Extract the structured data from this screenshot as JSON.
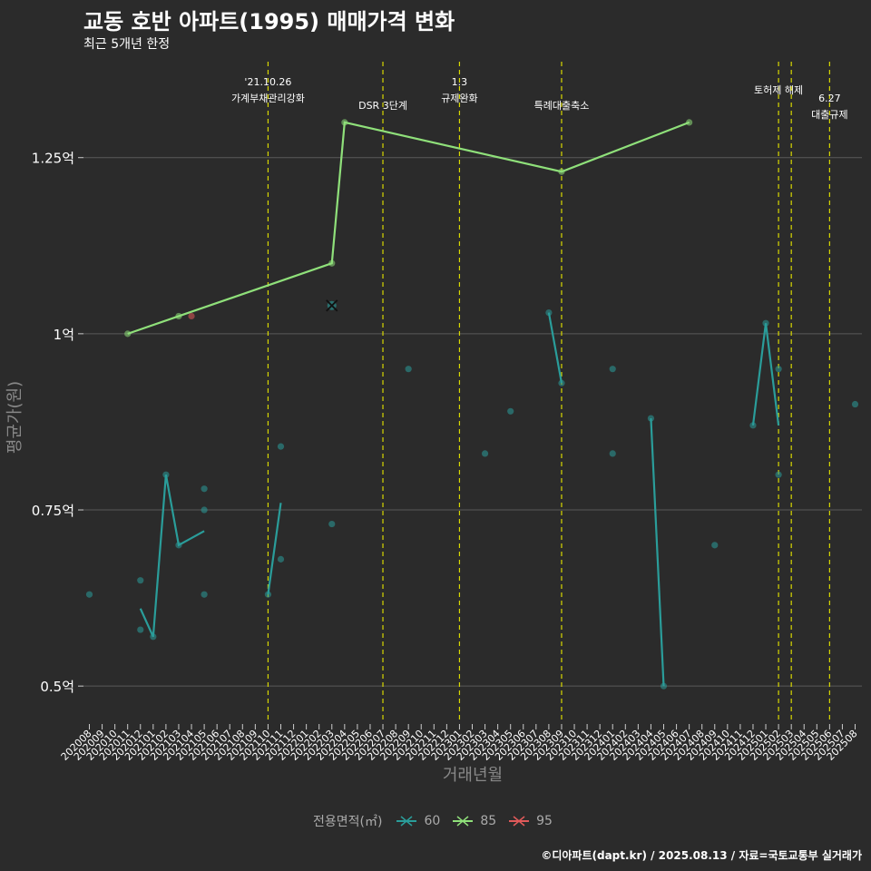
{
  "header": {
    "title": "교동 호반 아파트(1995) 매매가격 변화",
    "subtitle": "최근 5개년 한정"
  },
  "caption": "©디아파트(dapt.kr) / 2025.08.13 / 자료=국토교통부 실거래가",
  "legend": {
    "title": "전용면적(㎡)",
    "items": [
      {
        "label": "60",
        "color": "#2a9d9a"
      },
      {
        "label": "85",
        "color": "#8fe07a"
      },
      {
        "label": "95",
        "color": "#e05a5a"
      }
    ]
  },
  "chart_data": {
    "type": "line",
    "xlabel": "거래년월",
    "ylabel": "평균가(원)",
    "ylim": [
      0.45,
      1.39
    ],
    "y_ticks": [
      {
        "value": 0.5,
        "label": "0.5억"
      },
      {
        "value": 0.75,
        "label": "0.75억"
      },
      {
        "value": 1.0,
        "label": "1억"
      },
      {
        "value": 1.25,
        "label": "1.25억"
      }
    ],
    "x_categories": [
      "202008",
      "202009",
      "202010",
      "202011",
      "202012",
      "202101",
      "202102",
      "202103",
      "202104",
      "202105",
      "202106",
      "202107",
      "202108",
      "202109",
      "202110",
      "202111",
      "202112",
      "202201",
      "202202",
      "202203",
      "202204",
      "202205",
      "202206",
      "202207",
      "202208",
      "202209",
      "202210",
      "202211",
      "202212",
      "202301",
      "202302",
      "202303",
      "202304",
      "202305",
      "202306",
      "202307",
      "202308",
      "202309",
      "202310",
      "202311",
      "202312",
      "202401",
      "202402",
      "202403",
      "202404",
      "202405",
      "202406",
      "202407",
      "202408",
      "202409",
      "202410",
      "202411",
      "202412",
      "202501",
      "202502",
      "202503",
      "202504",
      "202505",
      "202506",
      "202507",
      "202508"
    ],
    "events": [
      {
        "x": "202110",
        "x_offset": 0.0,
        "lines": [
          "'21.10.26",
          "가계부채관리강화"
        ],
        "row": 0
      },
      {
        "x": "202207",
        "x_offset": 0.0,
        "lines": [
          "DSR 3단계"
        ],
        "row": 1
      },
      {
        "x": "202301",
        "x_offset": 0.0,
        "lines": [
          "1.3",
          "규제완화"
        ],
        "row": 0
      },
      {
        "x": "202309",
        "x_offset": 0.0,
        "lines": [
          "특례대출축소"
        ],
        "row": 1
      },
      {
        "x": "202502",
        "x_offset": 0.0,
        "lines": [
          "토허제 해제"
        ],
        "row": 0.35
      },
      {
        "x": "202503",
        "x_offset": 0.0,
        "lines": [],
        "row": 0
      },
      {
        "x": "202506",
        "x_offset": 0.0,
        "lines": [
          "6.27",
          "대출규제"
        ],
        "row": 0.7
      }
    ],
    "series": [
      {
        "name": "60",
        "color": "#2a9d9a",
        "line": [
          {
            "x": "202012",
            "y": 0.61
          },
          {
            "x": "202101",
            "y": 0.57
          },
          {
            "x": "202102",
            "y": 0.8
          },
          {
            "x": "202103",
            "y": 0.7
          },
          {
            "x": "202105",
            "y": 0.72
          }
        ],
        "line2": [
          {
            "x": "202110",
            "y": 0.63
          },
          {
            "x": "202111",
            "y": 0.76
          }
        ],
        "line3": [
          {
            "x": "202308",
            "y": 1.03
          },
          {
            "x": "202309",
            "y": 0.93
          }
        ],
        "line4": [
          {
            "x": "202404",
            "y": 0.88
          },
          {
            "x": "202405",
            "y": 0.5
          }
        ],
        "line5": [
          {
            "x": "202412",
            "y": 0.87
          },
          {
            "x": "202501",
            "y": 1.015
          },
          {
            "x": "202502",
            "y": 0.87
          }
        ],
        "points": [
          {
            "x": "202008",
            "y": 0.63
          },
          {
            "x": "202012",
            "y": 0.65
          },
          {
            "x": "202012",
            "y": 0.58
          },
          {
            "x": "202101",
            "y": 0.57
          },
          {
            "x": "202102",
            "y": 0.8
          },
          {
            "x": "202103",
            "y": 0.7
          },
          {
            "x": "202105",
            "y": 0.78
          },
          {
            "x": "202105",
            "y": 0.75
          },
          {
            "x": "202105",
            "y": 0.63
          },
          {
            "x": "202110",
            "y": 0.63
          },
          {
            "x": "202111",
            "y": 0.84
          },
          {
            "x": "202111",
            "y": 0.68
          },
          {
            "x": "202203",
            "y": 0.73
          },
          {
            "x": "202209",
            "y": 0.95
          },
          {
            "x": "202303",
            "y": 0.83
          },
          {
            "x": "202305",
            "y": 0.89
          },
          {
            "x": "202308",
            "y": 1.03
          },
          {
            "x": "202309",
            "y": 0.93
          },
          {
            "x": "202401",
            "y": 0.95
          },
          {
            "x": "202401",
            "y": 0.83
          },
          {
            "x": "202404",
            "y": 0.88
          },
          {
            "x": "202405",
            "y": 0.5
          },
          {
            "x": "202409",
            "y": 0.7
          },
          {
            "x": "202412",
            "y": 0.87
          },
          {
            "x": "202501",
            "y": 1.015
          },
          {
            "x": "202502",
            "y": 0.95
          },
          {
            "x": "202502",
            "y": 0.8
          },
          {
            "x": "202508",
            "y": 0.9
          }
        ]
      },
      {
        "name": "85",
        "color": "#8fe07a",
        "line": [
          {
            "x": "202011",
            "y": 1.0
          },
          {
            "x": "202103",
            "y": 1.025
          },
          {
            "x": "202203",
            "y": 1.1
          },
          {
            "x": "202204",
            "y": 1.3
          },
          {
            "x": "202309",
            "y": 1.23
          },
          {
            "x": "202407",
            "y": 1.3
          }
        ],
        "points": [
          {
            "x": "202011",
            "y": 1.0
          },
          {
            "x": "202103",
            "y": 1.025
          },
          {
            "x": "202203",
            "y": 1.1
          },
          {
            "x": "202204",
            "y": 1.3
          },
          {
            "x": "202309",
            "y": 1.23
          },
          {
            "x": "202407",
            "y": 1.3
          }
        ]
      },
      {
        "name": "95",
        "color": "#e05a5a",
        "points": [
          {
            "x": "202104",
            "y": 1.025
          }
        ]
      }
    ],
    "highlight": {
      "x": "202203",
      "y": 1.04
    },
    "grid": true,
    "legend_position": "bottom"
  }
}
